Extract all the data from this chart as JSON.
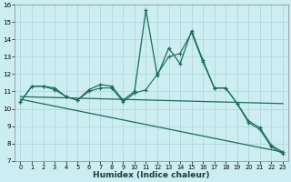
{
  "xlabel": "Humidex (Indice chaleur)",
  "bg_color": "#cceef2",
  "grid_color": "#aad4d8",
  "line_color": "#1a6b5a",
  "xlim": [
    -0.5,
    23.5
  ],
  "ylim": [
    7,
    16
  ],
  "xticks": [
    0,
    1,
    2,
    3,
    4,
    5,
    6,
    7,
    8,
    9,
    10,
    11,
    12,
    13,
    14,
    15,
    16,
    17,
    18,
    19,
    20,
    21,
    22,
    23
  ],
  "yticks": [
    7,
    8,
    9,
    10,
    11,
    12,
    13,
    14,
    15,
    16
  ],
  "main_x": [
    0,
    1,
    2,
    3,
    4,
    5,
    6,
    7,
    8,
    9,
    10,
    11,
    12,
    13,
    14,
    15,
    16,
    17,
    18,
    19,
    20,
    21,
    22,
    23
  ],
  "main_y": [
    10.4,
    11.3,
    11.3,
    11.2,
    10.7,
    10.5,
    11.1,
    11.4,
    11.3,
    10.5,
    11.0,
    15.7,
    11.9,
    13.5,
    12.6,
    14.5,
    12.8,
    11.2,
    11.2,
    10.3,
    9.3,
    8.9,
    7.9,
    7.5
  ],
  "trend1_x": [
    0,
    23
  ],
  "trend1_y": [
    10.7,
    10.3
  ],
  "trend2_x": [
    0,
    23
  ],
  "trend2_y": [
    10.55,
    7.5
  ],
  "line2_x": [
    0,
    1,
    2,
    3,
    4,
    5,
    6,
    7,
    8,
    9,
    10,
    11,
    12,
    13,
    14,
    15,
    16,
    17,
    18,
    19,
    20,
    21,
    22,
    23
  ],
  "line2_y": [
    10.4,
    11.3,
    11.3,
    11.1,
    10.7,
    10.5,
    11.0,
    11.2,
    11.2,
    10.4,
    10.9,
    11.1,
    12.0,
    13.0,
    13.2,
    14.4,
    12.7,
    11.2,
    11.2,
    10.3,
    9.2,
    8.8,
    7.8,
    7.4
  ]
}
